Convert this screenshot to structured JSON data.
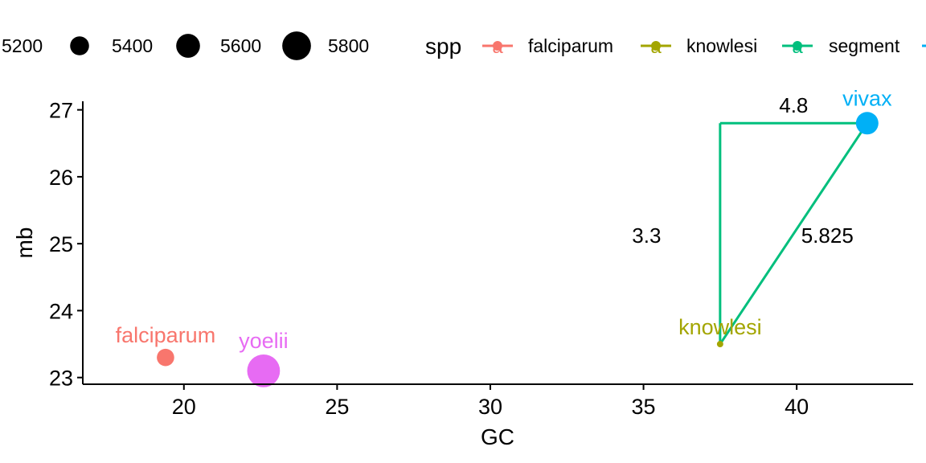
{
  "chart_data": {
    "type": "scatter",
    "xlabel": "GC",
    "ylabel": "mb",
    "xlim": [
      16.7,
      43.8
    ],
    "ylim": [
      22.9,
      27.2
    ],
    "xticks": [
      20,
      25,
      30,
      35,
      40
    ],
    "yticks": [
      23,
      24,
      25,
      26,
      27
    ],
    "xtick_labels": [
      "20",
      "25",
      "30",
      "35",
      "40"
    ],
    "ytick_labels": [
      "23",
      "24",
      "25",
      "26",
      "27"
    ],
    "legend": {
      "position": "top",
      "size_title": "",
      "size_entries": [
        {
          "label": "5200",
          "value": 5200
        },
        {
          "label": "5400",
          "value": 5400
        },
        {
          "label": "5600",
          "value": 5600
        },
        {
          "label": "5800",
          "value": 5800
        }
      ],
      "color_title": "spp",
      "color_entries": [
        {
          "label": "falciparum",
          "color": "#F8766D"
        },
        {
          "label": "knowlesi",
          "color": "#A3A500"
        },
        {
          "label": "segment",
          "color": "#00BF7D"
        },
        {
          "label": "",
          "color": "#00B0F6"
        }
      ],
      "key_glyph": "a"
    },
    "points": [
      {
        "label": "falciparum",
        "x": 19.4,
        "y": 23.3,
        "size": 5300,
        "color": "#F8766D"
      },
      {
        "label": "knowlesi",
        "x": 37.5,
        "y": 23.5,
        "size": 4700,
        "color": "#A3A500"
      },
      {
        "label": "vivax",
        "x": 42.3,
        "y": 26.8,
        "size": 5500,
        "color": "#00B0F6"
      },
      {
        "label": "yoelii",
        "x": 22.6,
        "y": 23.1,
        "size": 5900,
        "color": "#E76BF3"
      }
    ],
    "segments": [
      {
        "name": "segment",
        "color": "#00BF7D",
        "x1": 37.5,
        "y1": 23.5,
        "x2": 37.5,
        "y2": 26.8
      },
      {
        "name": "segment",
        "color": "#00BF7D",
        "x1": 37.5,
        "y1": 26.8,
        "x2": 42.3,
        "y2": 26.8
      },
      {
        "name": "segment",
        "color": "#00BF7D",
        "x1": 37.5,
        "y1": 23.5,
        "x2": 42.3,
        "y2": 26.8,
        "arrow": true
      }
    ],
    "annotations": [
      {
        "text": "4.8",
        "x": 39.9,
        "y": 27.07
      },
      {
        "text": "3.3",
        "x": 35.1,
        "y": 25.12
      },
      {
        "text": "5.825",
        "x": 41.0,
        "y": 25.12
      }
    ]
  }
}
